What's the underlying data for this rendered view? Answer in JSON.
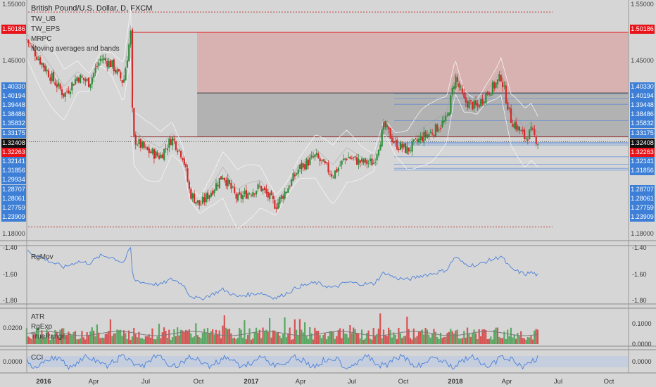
{
  "chart_title": "British Pound/U.S. Dollar, D, FXCM",
  "main_legend": [
    "TW_UB",
    "TW_EPS",
    "MRPC",
    "Moving averages and bands"
  ],
  "rgmov_legend": "RgMov",
  "atr_legend": [
    "ATR",
    "RgExp",
    "TrueRange"
  ],
  "cci_legend": "CCI",
  "right_axis_main": [
    "1.55000",
    "1.50186",
    "1.45000",
    "1.40330",
    "1.40194",
    "1.39448",
    "1.38486",
    "1.35832",
    "1.33175",
    "1.32408",
    "1.32263",
    "1.32141",
    "1.31856",
    "1.28707",
    "1.28061",
    "1.27759",
    "1.23909",
    "1.18000"
  ],
  "left_axis_main": [
    "1.55000",
    "1.50186",
    "1.45000",
    "1.40330",
    "1.40194",
    "1.39448",
    "1.38486",
    "1.35832",
    "1.33175",
    "1.32408",
    "1.32263",
    "1.32141",
    "1.31856",
    "1.29934",
    "1.28707",
    "1.28061",
    "1.27759",
    "1.23909",
    "1.18000"
  ],
  "rgmov_axis": [
    "-1.40",
    "-1.60",
    "-1.80"
  ],
  "atr_axis_left": [
    "0.0200"
  ],
  "atr_axis_right": [
    "0.1000",
    "0.0000"
  ],
  "cci_axis": [
    "0.0000"
  ],
  "x_axis": [
    "2016",
    "Apr",
    "Jul",
    "Oct",
    "2017",
    "Apr",
    "Jul",
    "Oct",
    "2018",
    "Apr",
    "Jul",
    "Oct"
  ],
  "colors": {
    "up": "#2e8b3a",
    "down": "#d42a2a",
    "zone_upper": "#d8a8a8",
    "zone_mid": "#a9a9a9",
    "blue_line": "#4a80d8",
    "label_blue": "#3d7fd6",
    "label_red": "#e8141a"
  },
  "chart_data": {
    "type": "candlestick",
    "title": "British Pound/U.S. Dollar, D, FXCM",
    "symbol": "GBPUSD",
    "timeframe": "D",
    "x_range": [
      "2015-12",
      "2018-11"
    ],
    "ylim": [
      1.18,
      1.55
    ],
    "last_price": 1.32408,
    "horizontal_levels": [
      1.50186,
      1.4033,
      1.40194,
      1.39448,
      1.38486,
      1.35832,
      1.33175,
      1.32263,
      1.32141,
      1.31856,
      1.29934,
      1.28707,
      1.28061,
      1.27759,
      1.23909
    ],
    "close_path": [
      {
        "date": "2015-12-20",
        "close": 1.49
      },
      {
        "date": "2016-01-10",
        "close": 1.46
      },
      {
        "date": "2016-02-01",
        "close": 1.43
      },
      {
        "date": "2016-02-25",
        "close": 1.4
      },
      {
        "date": "2016-03-20",
        "close": 1.43
      },
      {
        "date": "2016-04-10",
        "close": 1.42
      },
      {
        "date": "2016-05-01",
        "close": 1.46
      },
      {
        "date": "2016-05-20",
        "close": 1.45
      },
      {
        "date": "2016-06-10",
        "close": 1.42
      },
      {
        "date": "2016-06-23",
        "close": 1.5
      },
      {
        "date": "2016-06-27",
        "close": 1.33
      },
      {
        "date": "2016-07-20",
        "close": 1.31
      },
      {
        "date": "2016-08-15",
        "close": 1.3
      },
      {
        "date": "2016-09-05",
        "close": 1.33
      },
      {
        "date": "2016-09-25",
        "close": 1.3
      },
      {
        "date": "2016-10-07",
        "close": 1.24
      },
      {
        "date": "2016-10-25",
        "close": 1.22
      },
      {
        "date": "2016-11-20",
        "close": 1.25
      },
      {
        "date": "2016-12-05",
        "close": 1.27
      },
      {
        "date": "2016-12-31",
        "close": 1.23
      },
      {
        "date": "2017-01-17",
        "close": 1.24
      },
      {
        "date": "2017-02-10",
        "close": 1.25
      },
      {
        "date": "2017-03-10",
        "close": 1.22
      },
      {
        "date": "2017-04-01",
        "close": 1.25
      },
      {
        "date": "2017-04-20",
        "close": 1.28
      },
      {
        "date": "2017-05-20",
        "close": 1.3
      },
      {
        "date": "2017-06-20",
        "close": 1.27
      },
      {
        "date": "2017-07-15",
        "close": 1.3
      },
      {
        "date": "2017-08-10",
        "close": 1.29
      },
      {
        "date": "2017-09-01",
        "close": 1.29
      },
      {
        "date": "2017-09-20",
        "close": 1.35
      },
      {
        "date": "2017-10-10",
        "close": 1.32
      },
      {
        "date": "2017-11-01",
        "close": 1.31
      },
      {
        "date": "2017-11-25",
        "close": 1.33
      },
      {
        "date": "2017-12-15",
        "close": 1.34
      },
      {
        "date": "2018-01-10",
        "close": 1.36
      },
      {
        "date": "2018-01-25",
        "close": 1.43
      },
      {
        "date": "2018-02-10",
        "close": 1.39
      },
      {
        "date": "2018-03-05",
        "close": 1.38
      },
      {
        "date": "2018-03-20",
        "close": 1.4
      },
      {
        "date": "2018-04-10",
        "close": 1.42
      },
      {
        "date": "2018-04-17",
        "close": 1.43
      },
      {
        "date": "2018-05-05",
        "close": 1.36
      },
      {
        "date": "2018-05-30",
        "close": 1.33
      },
      {
        "date": "2018-06-10",
        "close": 1.34
      },
      {
        "date": "2018-06-22",
        "close": 1.3241
      }
    ]
  }
}
